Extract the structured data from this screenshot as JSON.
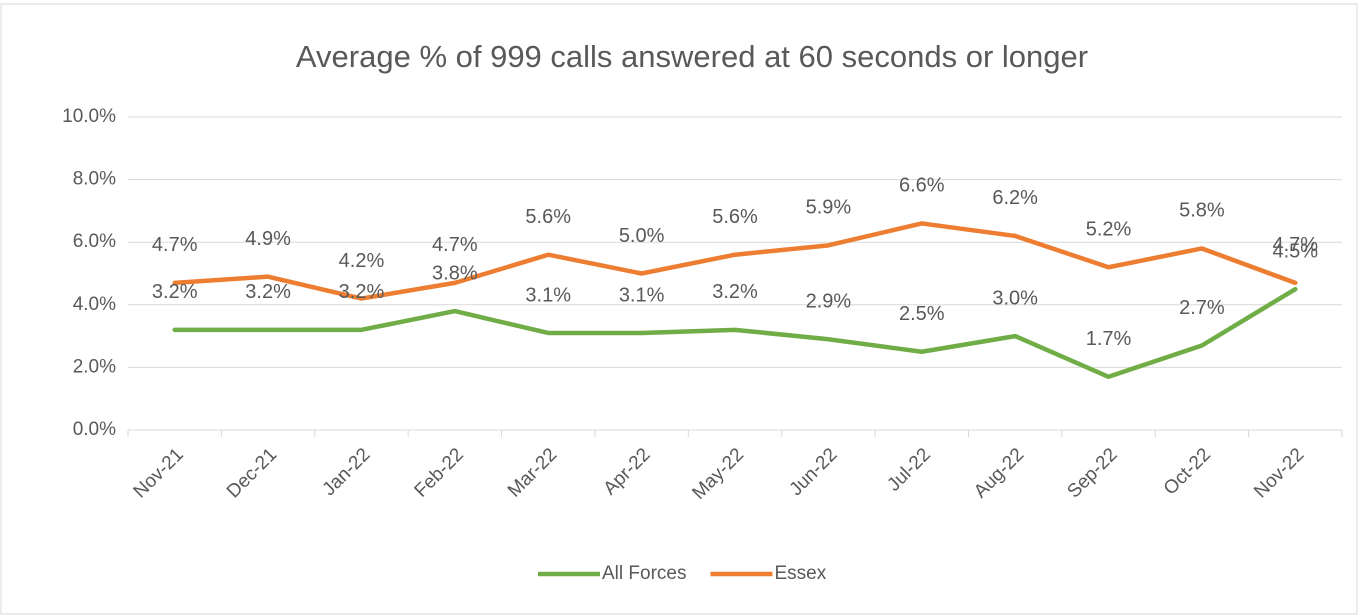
{
  "chart_data": {
    "type": "line",
    "title": "Average % of 999 calls answered at 60 seconds or longer",
    "categories": [
      "Nov-21",
      "Dec-21",
      "Jan-22",
      "Feb-22",
      "Mar-22",
      "Apr-22",
      "May-22",
      "Jun-22",
      "Jul-22",
      "Aug-22",
      "Sep-22",
      "Oct-22",
      "Nov-22"
    ],
    "series": [
      {
        "name": "All Forces",
        "color": "#70ad47",
        "values": [
          3.2,
          3.2,
          3.2,
          3.8,
          3.1,
          3.1,
          3.2,
          2.9,
          2.5,
          3.0,
          1.7,
          2.7,
          4.5
        ],
        "value_labels": [
          "3.2%",
          "3.2%",
          "3.2%",
          "3.8%",
          "3.1%",
          "3.1%",
          "3.2%",
          "2.9%",
          "2.5%",
          "3.0%",
          "1.7%",
          "2.7%",
          "4.5%"
        ]
      },
      {
        "name": "Essex",
        "color": "#ed7d31",
        "values": [
          4.7,
          4.9,
          4.2,
          4.7,
          5.6,
          5.0,
          5.6,
          5.9,
          6.6,
          6.2,
          5.2,
          5.8,
          4.7
        ],
        "value_labels": [
          "4.7%",
          "4.9%",
          "4.2%",
          "4.7%",
          "5.6%",
          "5.0%",
          "5.6%",
          "5.9%",
          "6.6%",
          "6.2%",
          "5.2%",
          "5.8%",
          "4.7%"
        ]
      }
    ],
    "ylim": [
      0,
      10
    ],
    "yticks": [
      {
        "value": 0,
        "label": "0.0%"
      },
      {
        "value": 2,
        "label": "2.0%"
      },
      {
        "value": 4,
        "label": "4.0%"
      },
      {
        "value": 6,
        "label": "6.0%"
      },
      {
        "value": 8,
        "label": "8.0%"
      },
      {
        "value": 10,
        "label": "10.0%"
      }
    ],
    "grid": true,
    "legend": "bottom"
  }
}
